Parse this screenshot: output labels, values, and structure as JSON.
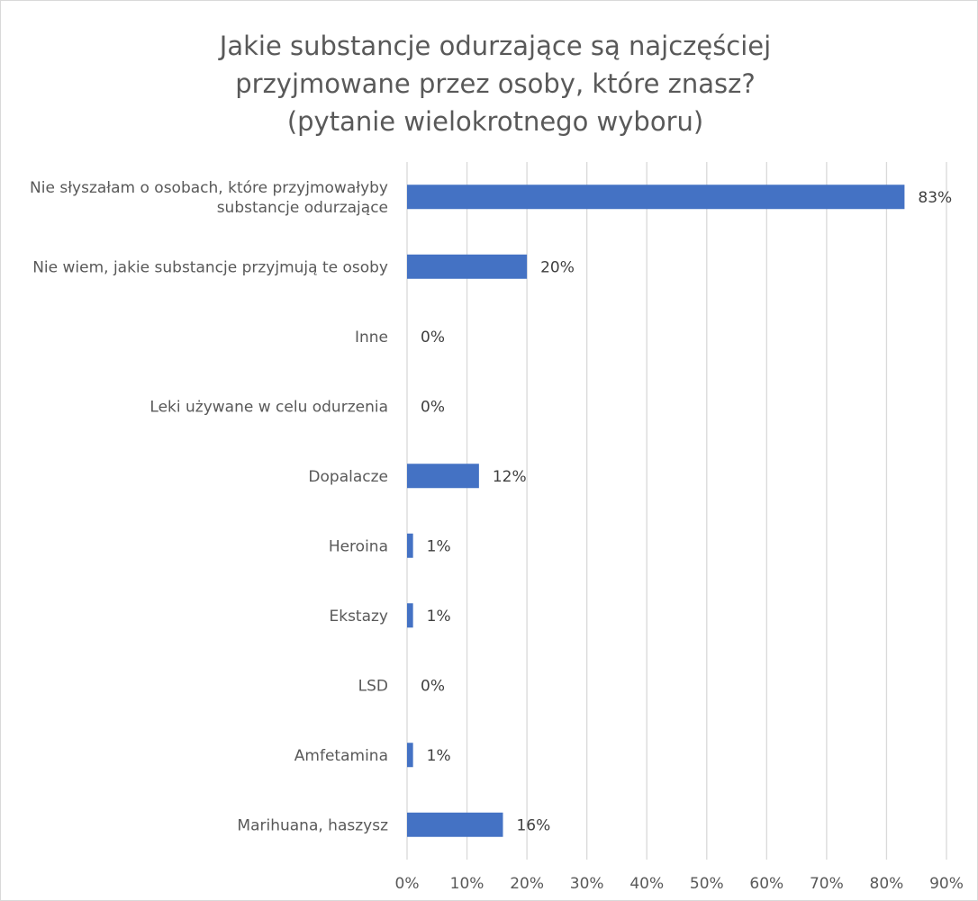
{
  "chart_data": {
    "type": "bar",
    "orientation": "horizontal",
    "title": "Jakie substancje odurzające są najczęściej\nprzyjmowane przez osoby, które znasz?\n(pytanie wielokrotnego wyboru)",
    "xlabel": "",
    "ylabel": "",
    "categories": [
      [
        "Nie słyszałam o osobach, które przyjmowałyby",
        "substancje odurzające"
      ],
      [
        "Nie wiem, jakie substancje przyjmują te osoby"
      ],
      [
        "Inne"
      ],
      [
        "Leki używane w celu odurzenia"
      ],
      [
        "Dopalacze"
      ],
      [
        "Heroina"
      ],
      [
        "Ekstazy"
      ],
      [
        "LSD"
      ],
      [
        "Amfetamina"
      ],
      [
        "Marihuana, haszysz"
      ]
    ],
    "values": [
      83,
      20,
      0,
      0,
      12,
      1,
      1,
      0,
      1,
      16
    ],
    "data_labels": [
      "83%",
      "20%",
      "0%",
      "0%",
      "12%",
      "1%",
      "1%",
      "0%",
      "1%",
      "16%"
    ],
    "xlim": [
      0,
      90
    ],
    "xticks": [
      0,
      10,
      20,
      30,
      40,
      50,
      60,
      70,
      80,
      90
    ],
    "xtick_labels": [
      "0%",
      "10%",
      "20%",
      "30%",
      "40%",
      "50%",
      "60%",
      "70%",
      "80%",
      "90%"
    ],
    "grid": "vertical",
    "legend": "none",
    "colors": {
      "bar": "#4472c4",
      "grid": "#d9d9d9",
      "text": "#595959"
    }
  }
}
